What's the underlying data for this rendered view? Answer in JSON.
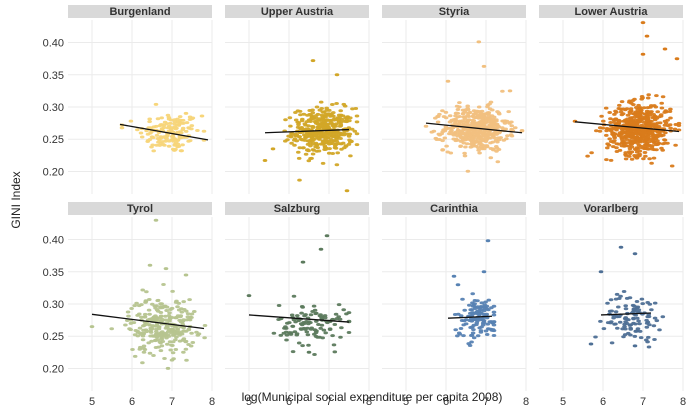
{
  "chart_data": {
    "type": "scatter",
    "xlabel": "log(Municipal social expenditure per capita 2008)",
    "ylabel": "GINI Index",
    "xlim": [
      4.4,
      8.0
    ],
    "ylim": [
      0.165,
      0.435
    ],
    "x_ticks": [
      5,
      6,
      7,
      8
    ],
    "y_ticks": [
      0.2,
      0.25,
      0.3,
      0.35,
      0.4
    ],
    "y_tick_labels": [
      "0.20",
      "0.25",
      "0.30",
      "0.35",
      "0.40"
    ],
    "grid": true,
    "legend": "none",
    "panels": [
      {
        "name": "Burgenland",
        "color": "#f7d579",
        "point_cloud": {
          "x_center": 6.95,
          "x_spread": 0.38,
          "y_center": 0.26,
          "y_spread": 0.016,
          "count": 150,
          "x_range": [
            5.75,
            7.8
          ]
        },
        "outliers": [
          [
            5.75,
            0.272
          ],
          [
            6.6,
            0.304
          ],
          [
            7.75,
            0.286
          ],
          [
            7.35,
            0.29
          ]
        ],
        "trend": [
          [
            5.7,
            0.273
          ],
          [
            7.9,
            0.249
          ]
        ]
      },
      {
        "name": "Upper Austria",
        "color": "#d2a627",
        "point_cloud": {
          "x_center": 6.85,
          "x_spread": 0.38,
          "y_center": 0.262,
          "y_spread": 0.018,
          "count": 400,
          "x_range": [
            5.4,
            7.7
          ]
        },
        "outliers": [
          [
            7.45,
            0.17
          ],
          [
            5.4,
            0.217
          ],
          [
            6.6,
            0.372
          ],
          [
            7.2,
            0.35
          ],
          [
            5.6,
            0.235
          ]
        ],
        "trend": [
          [
            5.4,
            0.26
          ],
          [
            7.5,
            0.265
          ]
        ]
      },
      {
        "name": "Styria",
        "color": "#f1c07f",
        "point_cloud": {
          "x_center": 6.75,
          "x_spread": 0.4,
          "y_center": 0.266,
          "y_spread": 0.017,
          "count": 480,
          "x_range": [
            5.5,
            7.9
          ]
        },
        "outliers": [
          [
            6.82,
            0.401
          ],
          [
            6.95,
            0.363
          ],
          [
            6.05,
            0.34
          ],
          [
            7.6,
            0.325
          ]
        ],
        "trend": [
          [
            5.5,
            0.275
          ],
          [
            7.9,
            0.26
          ]
        ]
      },
      {
        "name": "Lower Austria",
        "color": "#d97b1b",
        "point_cloud": {
          "x_center": 6.9,
          "x_spread": 0.4,
          "y_center": 0.266,
          "y_spread": 0.02,
          "count": 560,
          "x_range": [
            5.3,
            7.9
          ]
        },
        "outliers": [
          [
            7.0,
            0.431
          ],
          [
            7.1,
            0.41
          ],
          [
            7.55,
            0.39
          ],
          [
            7.0,
            0.382
          ],
          [
            7.85,
            0.375
          ],
          [
            5.3,
            0.278
          ]
        ],
        "trend": [
          [
            5.3,
            0.277
          ],
          [
            7.9,
            0.262
          ]
        ]
      },
      {
        "name": "Tyrol",
        "color": "#b6c48f",
        "point_cloud": {
          "x_center": 6.75,
          "x_spread": 0.42,
          "y_center": 0.267,
          "y_spread": 0.022,
          "count": 280,
          "x_range": [
            5.0,
            7.9
          ]
        },
        "outliers": [
          [
            6.6,
            0.43
          ],
          [
            6.45,
            0.36
          ],
          [
            6.85,
            0.355
          ],
          [
            6.9,
            0.2
          ],
          [
            5.0,
            0.265
          ],
          [
            7.35,
            0.345
          ]
        ],
        "trend": [
          [
            5.0,
            0.284
          ],
          [
            7.8,
            0.262
          ]
        ]
      },
      {
        "name": "Salzburg",
        "color": "#5c7a5d",
        "point_cloud": {
          "x_center": 6.6,
          "x_spread": 0.42,
          "y_center": 0.268,
          "y_spread": 0.016,
          "count": 120,
          "x_range": [
            5.0,
            7.5
          ]
        },
        "outliers": [
          [
            6.95,
            0.406
          ],
          [
            6.8,
            0.385
          ],
          [
            6.35,
            0.365
          ],
          [
            5.0,
            0.313
          ],
          [
            6.5,
            0.225
          ]
        ],
        "trend": [
          [
            5.0,
            0.283
          ],
          [
            7.5,
            0.272
          ]
        ]
      },
      {
        "name": "Carinthia",
        "color": "#5782b3",
        "point_cloud": {
          "x_center": 6.8,
          "x_spread": 0.3,
          "y_center": 0.278,
          "y_spread": 0.016,
          "count": 130,
          "x_range": [
            6.05,
            7.2
          ]
        },
        "outliers": [
          [
            7.05,
            0.398
          ],
          [
            6.2,
            0.343
          ],
          [
            6.95,
            0.35
          ],
          [
            6.3,
            0.33
          ]
        ],
        "trend": [
          [
            6.05,
            0.278
          ],
          [
            7.15,
            0.281
          ]
        ]
      },
      {
        "name": "Vorarlberg",
        "color": "#4e6f95",
        "point_cloud": {
          "x_center": 6.75,
          "x_spread": 0.35,
          "y_center": 0.28,
          "y_spread": 0.018,
          "count": 110,
          "x_range": [
            5.7,
            7.9
          ]
        },
        "outliers": [
          [
            6.45,
            0.388
          ],
          [
            6.8,
            0.378
          ],
          [
            5.95,
            0.35
          ],
          [
            5.7,
            0.238
          ],
          [
            6.8,
            0.235
          ]
        ],
        "trend": [
          [
            5.95,
            0.283
          ],
          [
            7.2,
            0.286
          ]
        ]
      }
    ]
  }
}
